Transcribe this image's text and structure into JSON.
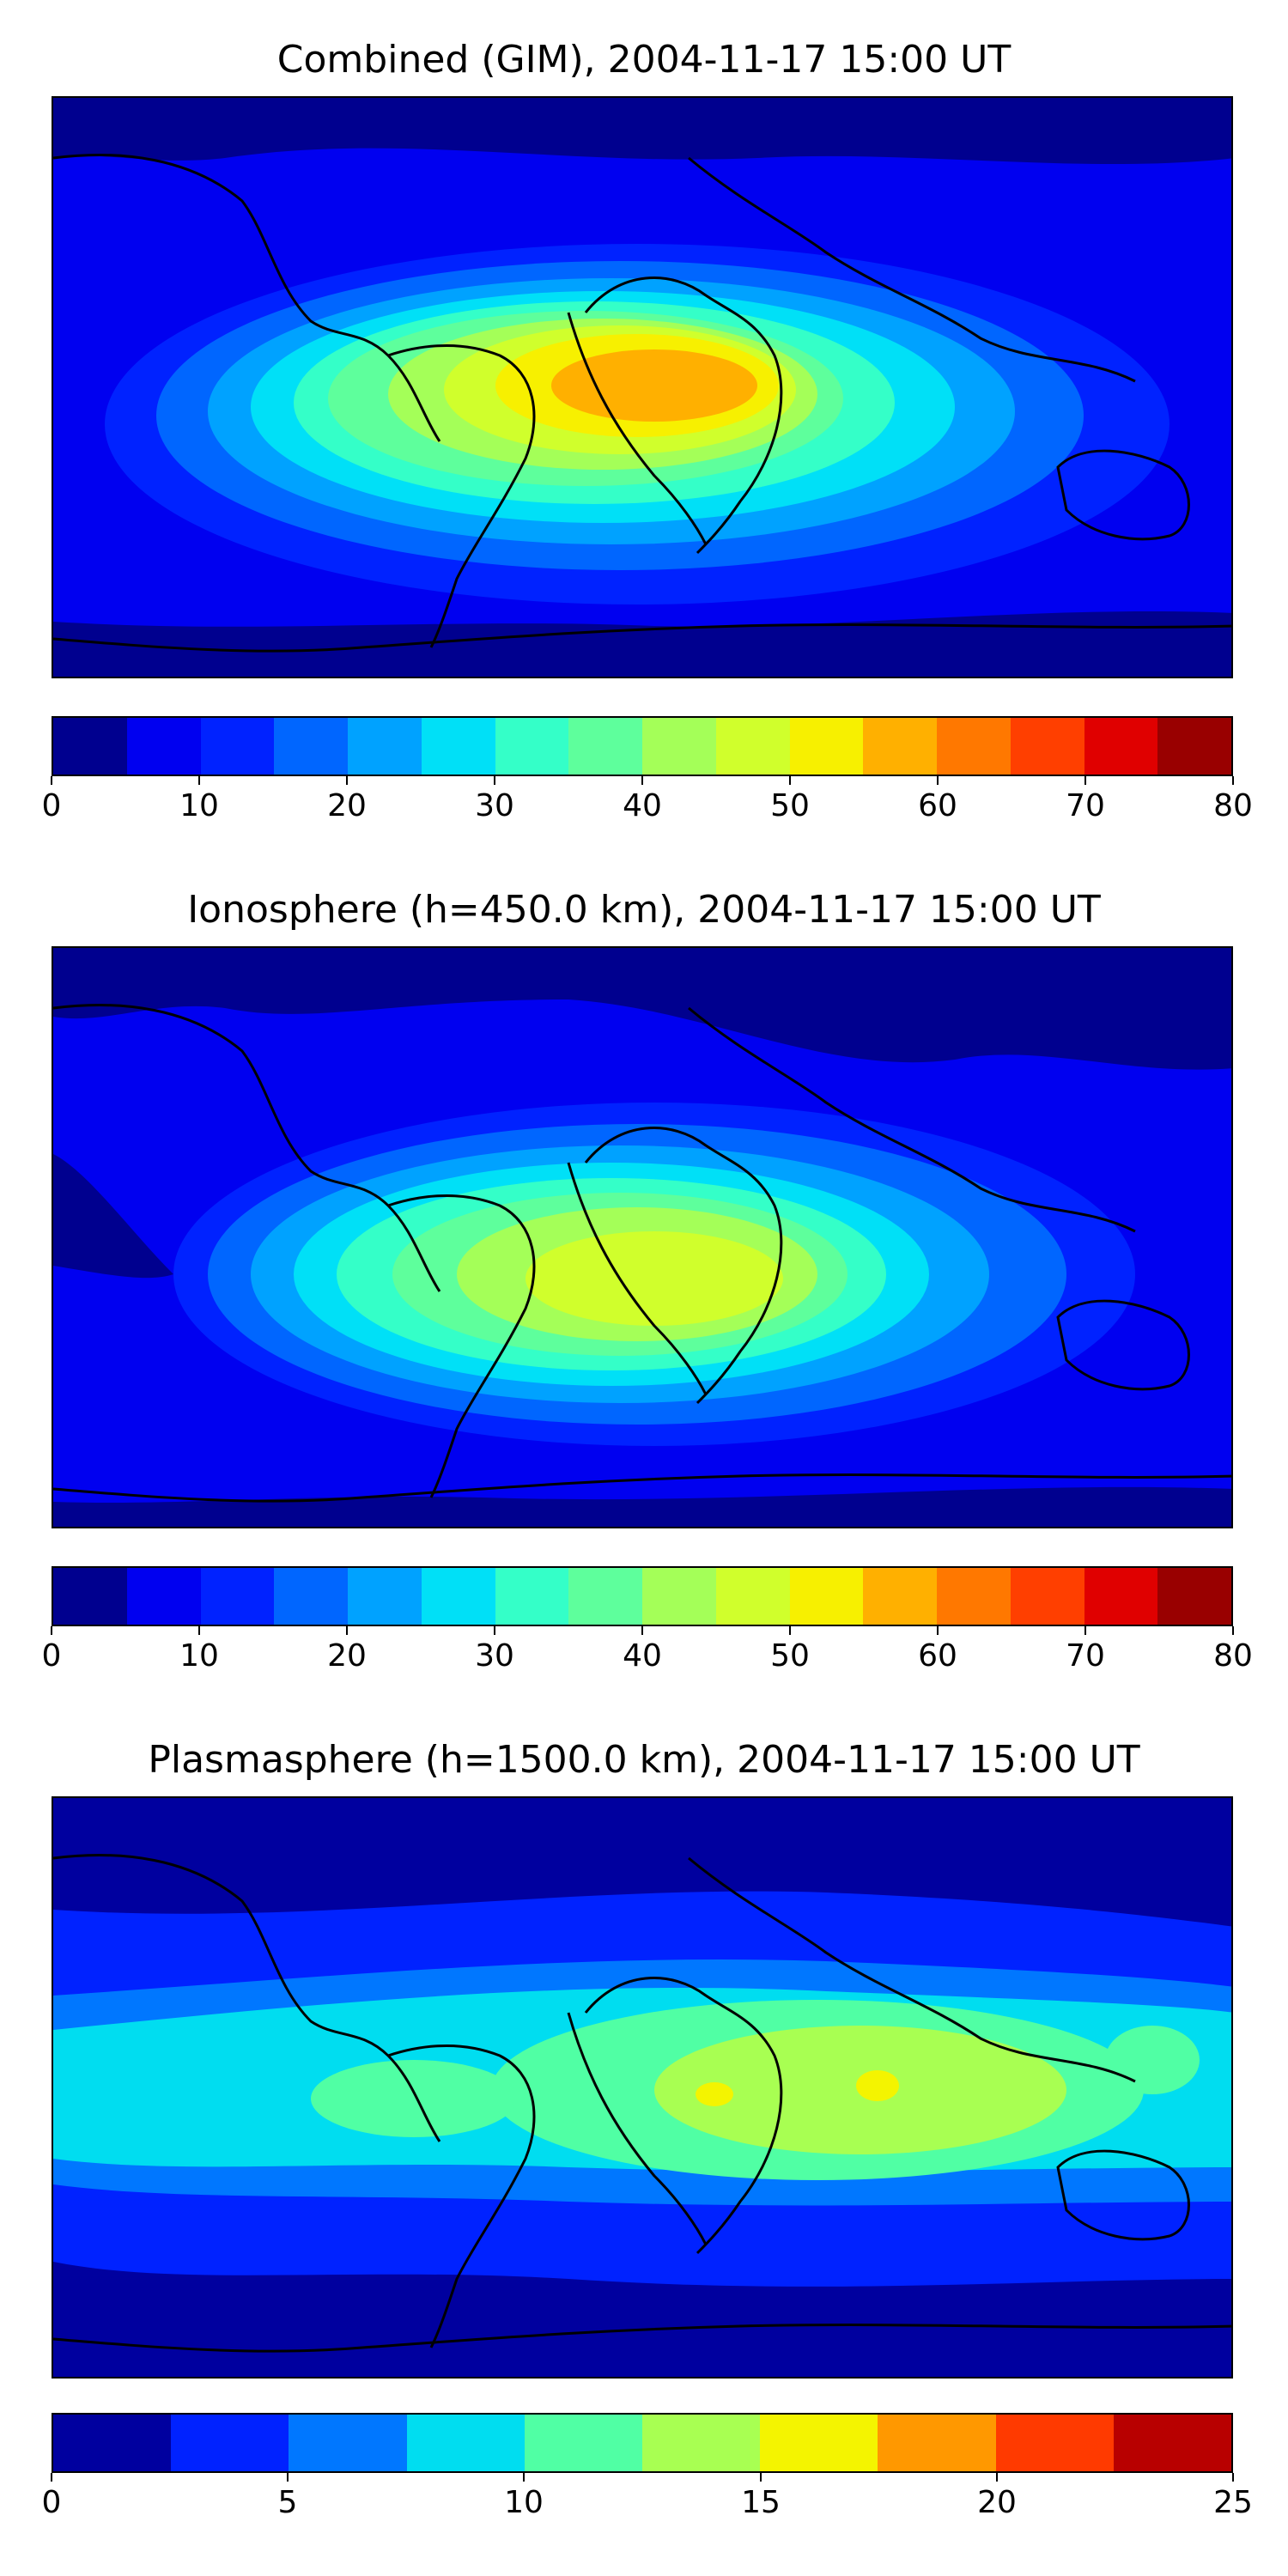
{
  "palette12": [
    "#00008f",
    "#0000f0",
    "#0022ff",
    "#0066ff",
    "#00a2ff",
    "#00e0f7",
    "#34ffc8",
    "#5eff9c",
    "#a4ff58",
    "#d0ff2c",
    "#f7f000",
    "#ffb000",
    "#ff7800",
    "#ff3f00",
    "#e00000",
    "#990000"
  ],
  "palette10": [
    "#00009f",
    "#0022ff",
    "#0077ff",
    "#00ddf0",
    "#50ffa4",
    "#a8ff52",
    "#f4f400",
    "#ff9800",
    "#ff3a00",
    "#b80000"
  ],
  "panels": [
    {
      "title": "Combined (GIM), 2004-11-17 15:00 UT",
      "colorbar": {
        "min": 0,
        "max": 80,
        "levels": 16,
        "ticks": [
          "0",
          "10",
          "20",
          "30",
          "40",
          "50",
          "60",
          "70",
          "80"
        ]
      }
    },
    {
      "title": "Ionosphere  (h=450.0 km), 2004-11-17 15:00 UT",
      "colorbar": {
        "min": 0,
        "max": 80,
        "levels": 16,
        "ticks": [
          "0",
          "10",
          "20",
          "30",
          "40",
          "50",
          "60",
          "70",
          "80"
        ]
      }
    },
    {
      "title": "Plasmasphere (h=1500.0 km), 2004-11-17 15:00 UT",
      "colorbar": {
        "min": 0,
        "max": 25,
        "levels": 10,
        "ticks": [
          "0",
          "5",
          "10",
          "15",
          "20",
          "25"
        ]
      }
    }
  ]
}
